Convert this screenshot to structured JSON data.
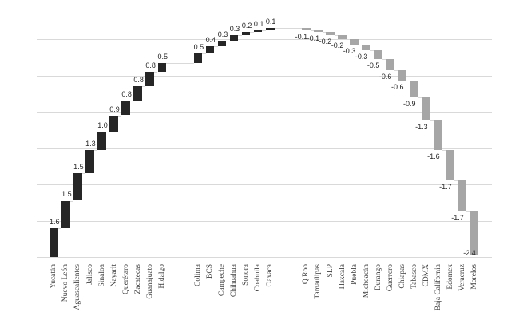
{
  "chart_data": {
    "type": "bar",
    "subtype": "waterfall",
    "title": "",
    "xlabel": "",
    "ylabel": "",
    "categories": [
      "Yucatán",
      "Nuevo León",
      "Aguascalientes",
      "Jalisco",
      "Sinaloa",
      "Nayarit",
      "Querétaro",
      "Zacatecas",
      "Guanajuato",
      "Hidalgo",
      "Colima",
      "BCS",
      "Campeche",
      "Chihuahua",
      "Sonora",
      "Coahuila",
      "Oaxaca",
      "Q.Roo",
      "Tamaulipas",
      "SLP",
      "Tlaxcala",
      "Puebla",
      "Michoacán",
      "Durango",
      "Guerrero",
      "Chiapas",
      "Tabasco",
      "CDMX",
      "Baja California",
      "Edomex",
      "Veracruz",
      "Morelos"
    ],
    "values": [
      1.6,
      1.5,
      1.5,
      1.3,
      1.0,
      0.9,
      0.8,
      0.8,
      0.8,
      0.5,
      0.5,
      0.4,
      0.3,
      0.3,
      0.2,
      0.1,
      0.1,
      -0.1,
      -0.1,
      -0.2,
      -0.2,
      -0.3,
      -0.3,
      -0.5,
      -0.6,
      -0.6,
      -0.9,
      -1.3,
      -1.6,
      -1.7,
      -1.7,
      -2.4
    ],
    "value_labels": [
      "1.6",
      "1.5",
      "1.5",
      "1.3",
      "1.0",
      "0.9",
      "0.8",
      "0.8",
      "0.8",
      "0.5",
      "0.5",
      "0.4",
      "0.3",
      "0.3",
      "0.2",
      "0.1",
      "0.1",
      "-0.1",
      "-0.1",
      "-0.2",
      "-0.2",
      "-0.3",
      "-0.3",
      "-0.5",
      "-0.6",
      "-0.6",
      "-0.9",
      "-1.3",
      "-1.6",
      "-1.7",
      "-1.7",
      "-2.4"
    ],
    "waterfall_start": 0,
    "gap_after": [
      "Hidalgo",
      "Oaxaca"
    ],
    "ylim": [
      0,
      13
    ],
    "gridline_step": 2,
    "grid_on": true,
    "legend": "none",
    "colors": {
      "positive_bar": "#262626",
      "negative_bar": "#a6a6a6",
      "gridline": "#d9d9d9",
      "connector": "#d9d9d9",
      "category_label": "#404040",
      "data_label": "#262626",
      "right_border": "#d9d9d9",
      "background": "#ffffff"
    }
  }
}
